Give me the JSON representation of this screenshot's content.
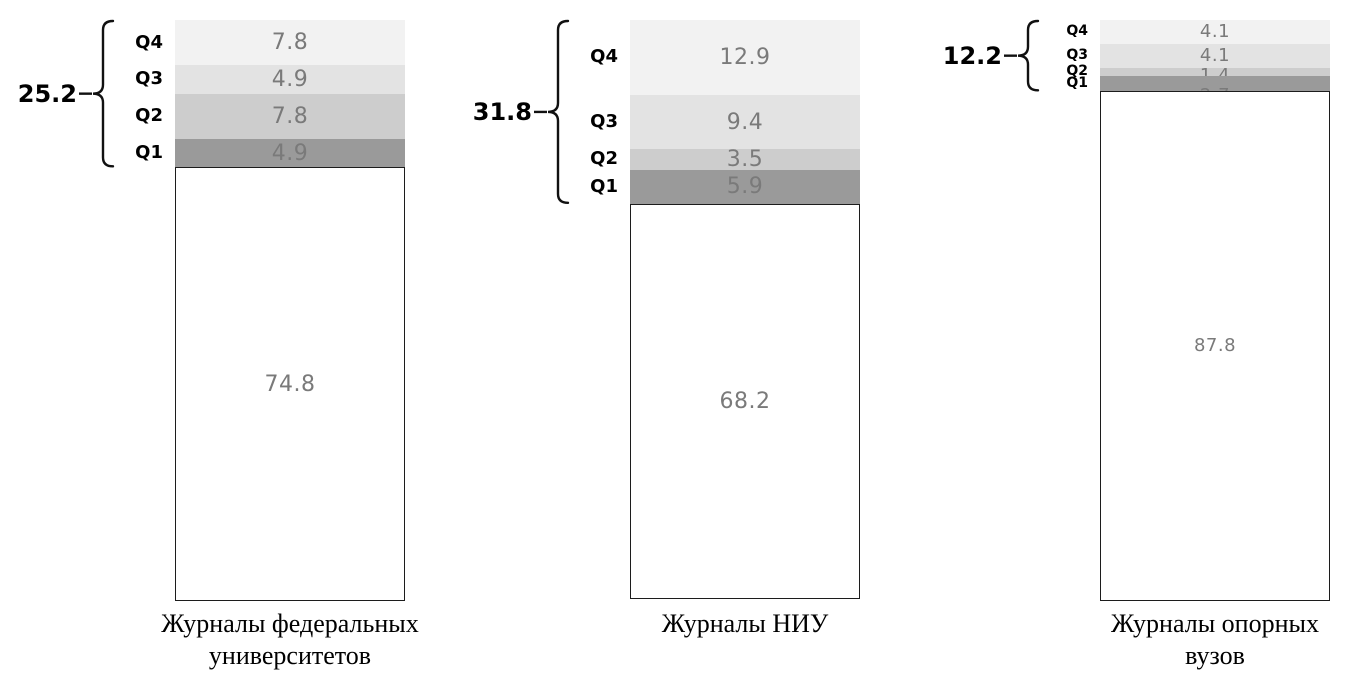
{
  "chart_data": {
    "type": "bar",
    "variant": "stacked-100-percent",
    "title": "",
    "categories": [
      "Журналы федеральных университетов",
      "Журналы НИУ",
      "Журналы опорных вузов"
    ],
    "category_lines": [
      [
        "Журналы федеральных",
        "университетов"
      ],
      [
        "Журналы НИУ"
      ],
      [
        "Журналы опорных",
        "вузов"
      ]
    ],
    "series": [
      {
        "name": "Q4",
        "values": [
          7.8,
          12.9,
          4.1
        ],
        "color": "#f2f2f2"
      },
      {
        "name": "Q3",
        "values": [
          4.9,
          9.4,
          4.1
        ],
        "color": "#e3e3e3"
      },
      {
        "name": "Q2",
        "values": [
          7.8,
          3.5,
          1.4
        ],
        "color": "#cdcdcd"
      },
      {
        "name": "Q1",
        "values": [
          4.9,
          5.9,
          2.7
        ],
        "color": "#9a9a9a"
      },
      {
        "name": "",
        "values": [
          74.8,
          68.2,
          87.8
        ],
        "color": "#ffffff"
      }
    ],
    "bracket_totals": [
      25.2,
      31.8,
      12.2
    ],
    "ylim": [
      0,
      100
    ],
    "grid": false,
    "legend": "none",
    "axis": "none",
    "value_label_color": "#7a7a7a",
    "bracket_color": "#111111"
  }
}
